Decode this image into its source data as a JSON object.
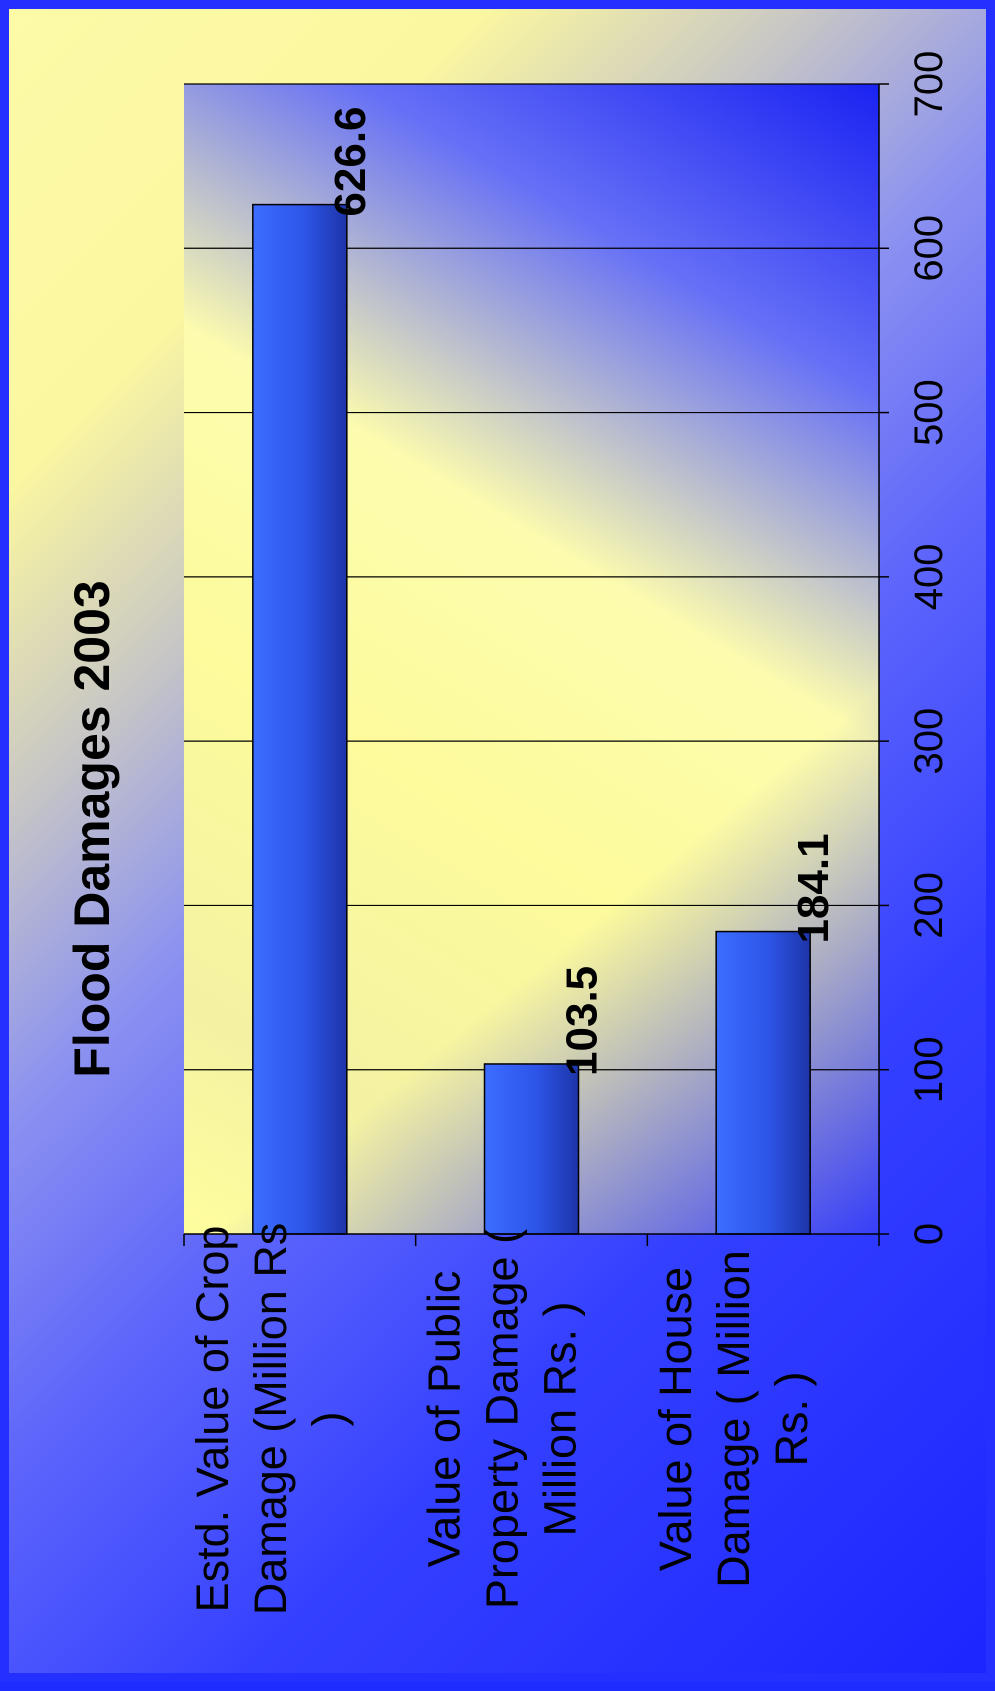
{
  "chart_data": {
    "type": "bar",
    "orientation": "horizontal",
    "title": "Flood Damages 2003",
    "categories": [
      [
        "Estd. Value of Crop",
        "Damage (Million Rs",
        ")"
      ],
      [
        "Value of Public",
        "Property Damage (",
        "Million Rs. )"
      ],
      [
        "Value of House",
        "Damage ( Million",
        "Rs. )"
      ]
    ],
    "values": [
      626.6,
      103.5,
      184.1
    ],
    "data_labels": [
      "626.6",
      "103.5",
      "184.1"
    ],
    "xlim": [
      0,
      700
    ],
    "ticks": [
      0,
      100,
      200,
      300,
      400,
      500,
      600,
      700
    ],
    "tick_labels": [
      "0",
      "100",
      "200",
      "300",
      "400",
      "500",
      "600",
      "700"
    ],
    "gridlines": true,
    "legend": "none",
    "colors": {
      "bar_light": "#3c6dff",
      "bar_mid": "#2d55e8",
      "bar_dark": "#1d34a8",
      "plot_light": "#ffffa0",
      "plot_dark": "#1820f0",
      "grid": "#000000"
    }
  }
}
